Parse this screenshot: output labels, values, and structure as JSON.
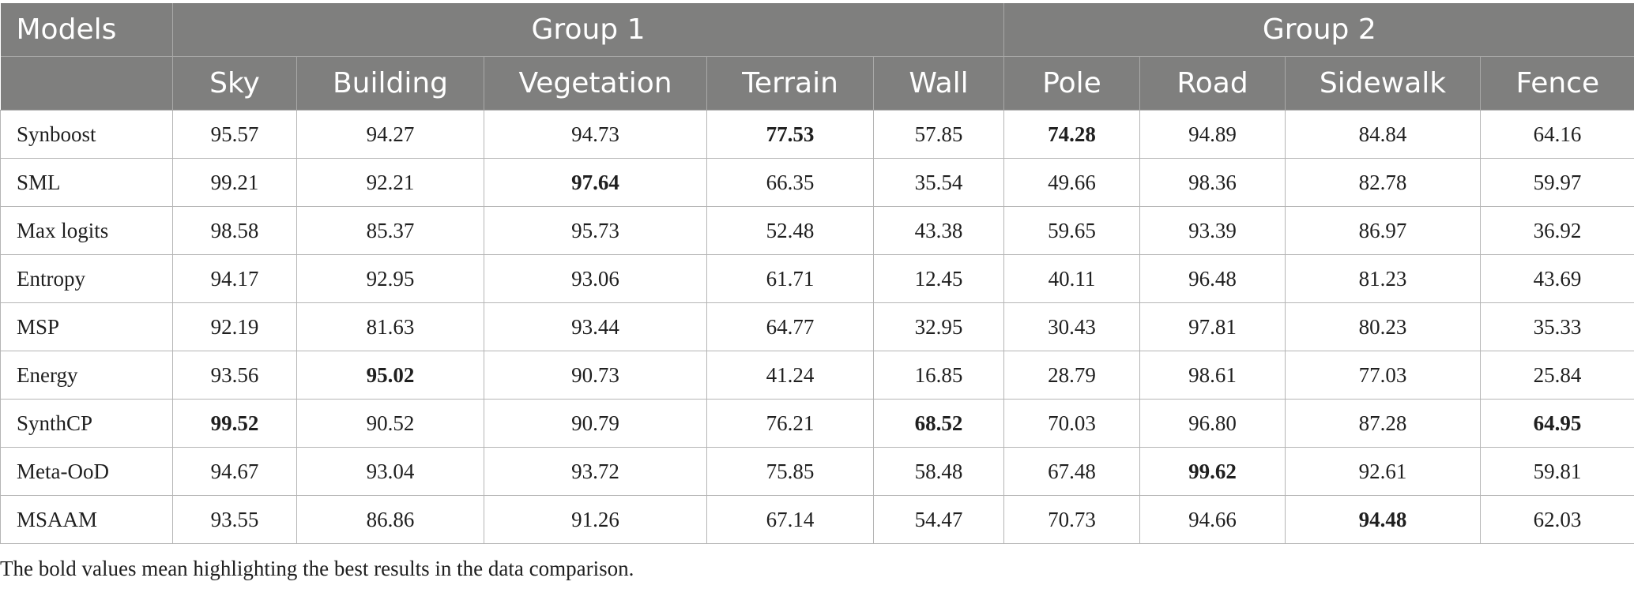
{
  "table": {
    "header": {
      "models_label": "Models",
      "groups": [
        "Group 1",
        "Group 2"
      ],
      "columns": [
        "Sky",
        "Building",
        "Vegetation",
        "Terrain",
        "Wall",
        "Pole",
        "Road",
        "Sidewalk",
        "Fence"
      ]
    },
    "rows": [
      {
        "model": "Synboost",
        "values": [
          "95.57",
          "94.27",
          "94.73",
          "77.53",
          "57.85",
          "74.28",
          "94.89",
          "84.84",
          "64.16"
        ],
        "best": [
          3,
          5
        ]
      },
      {
        "model": "SML",
        "values": [
          "99.21",
          "92.21",
          "97.64",
          "66.35",
          "35.54",
          "49.66",
          "98.36",
          "82.78",
          "59.97"
        ],
        "best": [
          2
        ]
      },
      {
        "model": "Max logits",
        "values": [
          "98.58",
          "85.37",
          "95.73",
          "52.48",
          "43.38",
          "59.65",
          "93.39",
          "86.97",
          "36.92"
        ],
        "best": []
      },
      {
        "model": "Entropy",
        "values": [
          "94.17",
          "92.95",
          "93.06",
          "61.71",
          "12.45",
          "40.11",
          "96.48",
          "81.23",
          "43.69"
        ],
        "best": []
      },
      {
        "model": "MSP",
        "values": [
          "92.19",
          "81.63",
          "93.44",
          "64.77",
          "32.95",
          "30.43",
          "97.81",
          "80.23",
          "35.33"
        ],
        "best": []
      },
      {
        "model": "Energy",
        "values": [
          "93.56",
          "95.02",
          "90.73",
          "41.24",
          "16.85",
          "28.79",
          "98.61",
          "77.03",
          "25.84"
        ],
        "best": [
          1
        ]
      },
      {
        "model": "SynthCP",
        "values": [
          "99.52",
          "90.52",
          "90.79",
          "76.21",
          "68.52",
          "70.03",
          "96.80",
          "87.28",
          "64.95"
        ],
        "best": [
          0,
          4,
          8
        ]
      },
      {
        "model": "Meta-OoD",
        "values": [
          "94.67",
          "93.04",
          "93.72",
          "75.85",
          "58.48",
          "67.48",
          "99.62",
          "92.61",
          "59.81"
        ],
        "best": [
          6
        ]
      },
      {
        "model": "MSAAM",
        "values": [
          "93.55",
          "86.86",
          "91.26",
          "67.14",
          "54.47",
          "70.73",
          "94.66",
          "94.48",
          "62.03"
        ],
        "best": [
          7
        ]
      }
    ]
  },
  "footnote": "The bold values mean highlighting the best results in the data comparison."
}
